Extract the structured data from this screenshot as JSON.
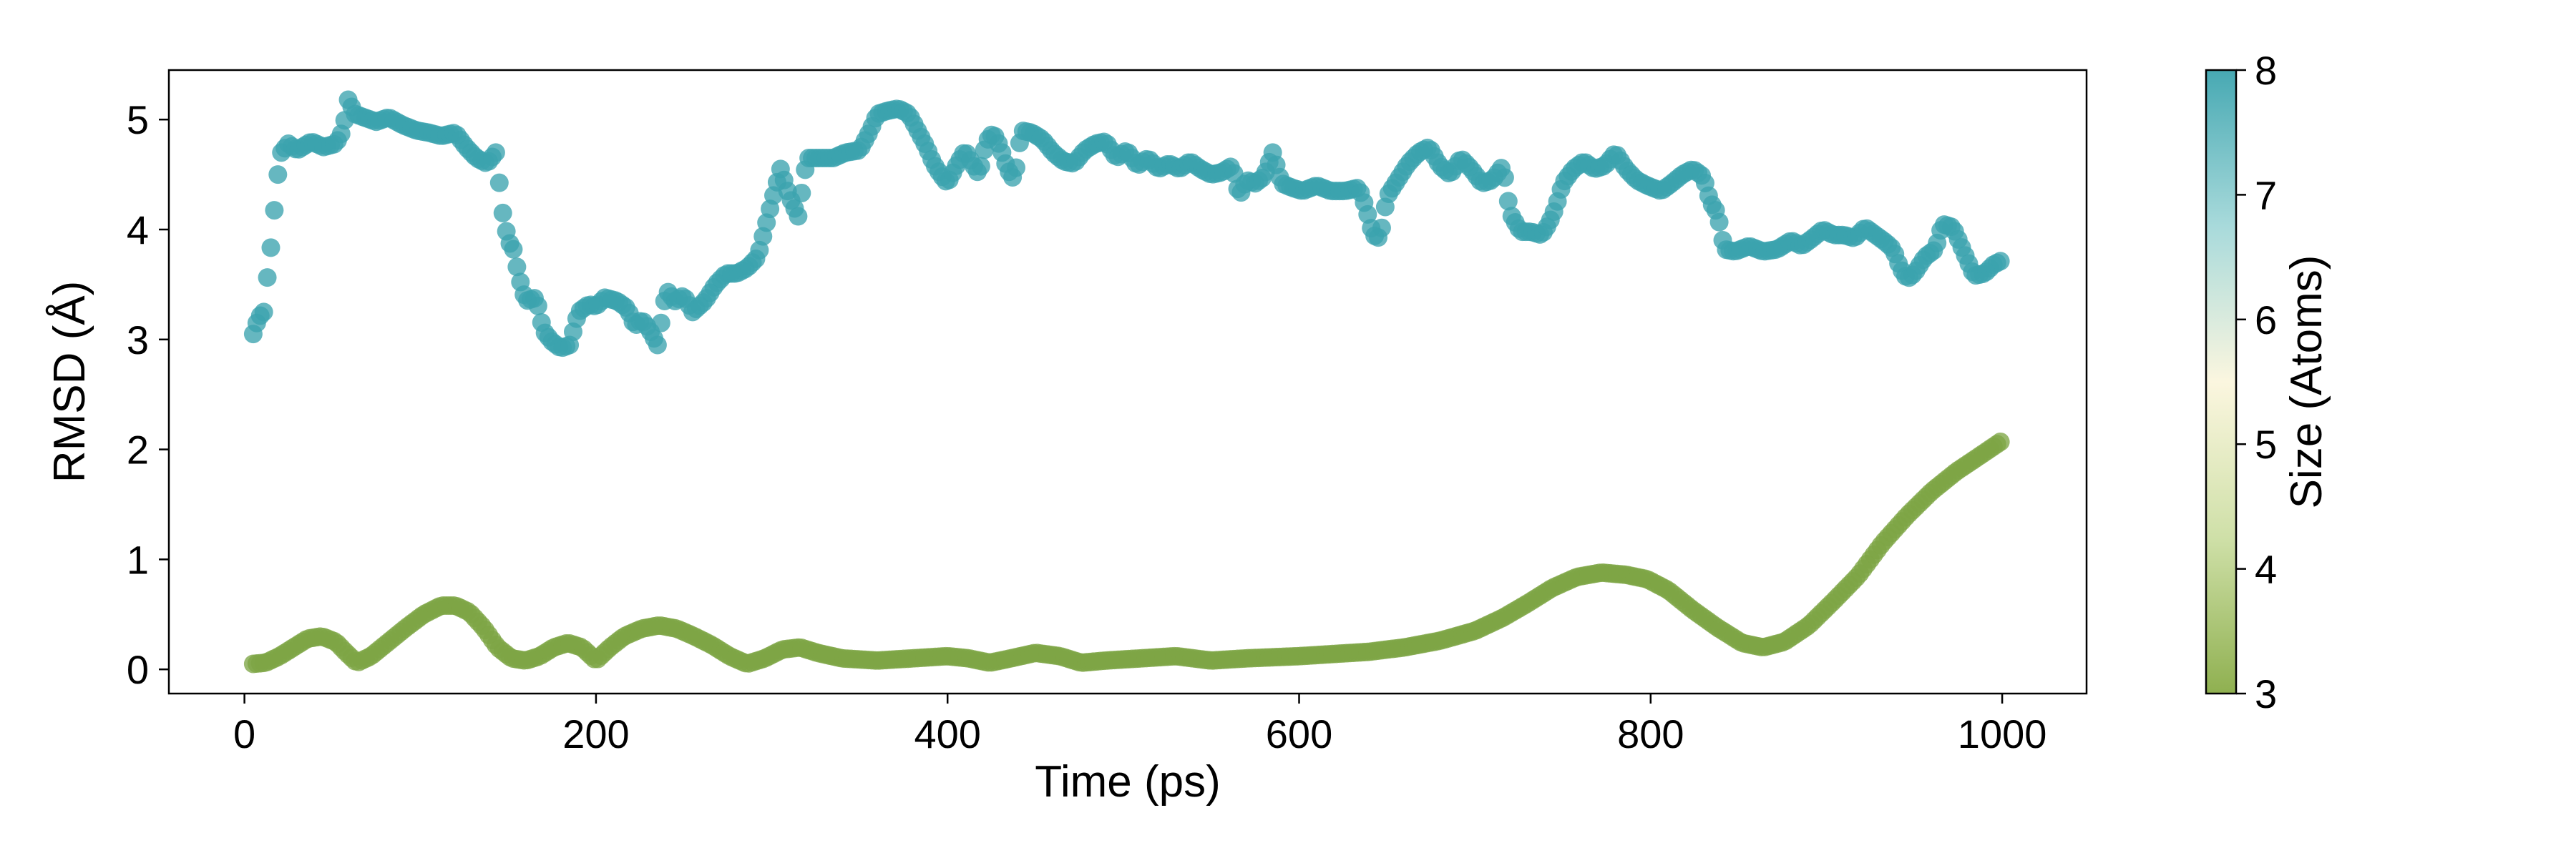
{
  "chart_data": {
    "type": "scatter",
    "xlabel": "Time (ps)",
    "ylabel": "RMSD (Å)",
    "xlim": [
      -43,
      1048
    ],
    "ylim": [
      -0.22,
      5.45
    ],
    "x_ticks": [
      0,
      200,
      400,
      600,
      800,
      1000
    ],
    "y_ticks": [
      0,
      1,
      2,
      3,
      4,
      5
    ],
    "grid": false,
    "legend": "none",
    "colorbar": {
      "label": "Size (Atoms)",
      "range": [
        3,
        8
      ],
      "ticks": [
        3,
        4,
        5,
        6,
        7,
        8
      ],
      "colors": [
        "#8fb050",
        "#cfe0a8",
        "#fbf6df",
        "#a8dadb",
        "#47a9b3"
      ]
    },
    "series": [
      {
        "size_atoms": 8,
        "color": "#3ba3ae",
        "x_step": 2,
        "anchors": [
          [
            5,
            3.05
          ],
          [
            8,
            3.2
          ],
          [
            11,
            3.25
          ],
          [
            14,
            3.72
          ],
          [
            16,
            3.95
          ],
          [
            18,
            4.4
          ],
          [
            21,
            4.7
          ],
          [
            25,
            4.78
          ],
          [
            30,
            4.72
          ],
          [
            38,
            4.8
          ],
          [
            45,
            4.75
          ],
          [
            52,
            4.78
          ],
          [
            56,
            4.9
          ],
          [
            59,
            5.18
          ],
          [
            63,
            5.05
          ],
          [
            68,
            5.02
          ],
          [
            75,
            4.98
          ],
          [
            82,
            5.02
          ],
          [
            90,
            4.95
          ],
          [
            98,
            4.9
          ],
          [
            105,
            4.88
          ],
          [
            112,
            4.85
          ],
          [
            120,
            4.88
          ],
          [
            126,
            4.75
          ],
          [
            132,
            4.65
          ],
          [
            138,
            4.6
          ],
          [
            143,
            4.7
          ],
          [
            147,
            4.15
          ],
          [
            150,
            3.9
          ],
          [
            153,
            3.82
          ],
          [
            156,
            3.58
          ],
          [
            160,
            3.35
          ],
          [
            166,
            3.38
          ],
          [
            170,
            3.08
          ],
          [
            175,
            2.98
          ],
          [
            180,
            2.92
          ],
          [
            185,
            2.95
          ],
          [
            190,
            3.25
          ],
          [
            196,
            3.32
          ],
          [
            200,
            3.3
          ],
          [
            205,
            3.38
          ],
          [
            212,
            3.35
          ],
          [
            218,
            3.28
          ],
          [
            222,
            3.12
          ],
          [
            226,
            3.18
          ],
          [
            230,
            3.1
          ],
          [
            235,
            2.95
          ],
          [
            240,
            3.45
          ],
          [
            245,
            3.35
          ],
          [
            250,
            3.4
          ],
          [
            255,
            3.25
          ],
          [
            262,
            3.35
          ],
          [
            268,
            3.5
          ],
          [
            274,
            3.6
          ],
          [
            280,
            3.6
          ],
          [
            286,
            3.65
          ],
          [
            292,
            3.75
          ],
          [
            296,
            4.0
          ],
          [
            300,
            4.25
          ],
          [
            305,
            4.55
          ],
          [
            310,
            4.3
          ],
          [
            315,
            4.12
          ],
          [
            320,
            4.65
          ],
          [
            328,
            4.65
          ],
          [
            335,
            4.65
          ],
          [
            342,
            4.7
          ],
          [
            350,
            4.72
          ],
          [
            356,
            4.9
          ],
          [
            360,
            5.05
          ],
          [
            366,
            5.08
          ],
          [
            372,
            5.1
          ],
          [
            378,
            5.05
          ],
          [
            383,
            4.9
          ],
          [
            388,
            4.75
          ],
          [
            392,
            4.6
          ],
          [
            396,
            4.5
          ],
          [
            400,
            4.42
          ],
          [
            405,
            4.58
          ],
          [
            410,
            4.72
          ],
          [
            414,
            4.6
          ],
          [
            418,
            4.5
          ],
          [
            422,
            4.8
          ],
          [
            426,
            4.88
          ],
          [
            430,
            4.75
          ],
          [
            434,
            4.55
          ],
          [
            438,
            4.45
          ],
          [
            442,
            4.9
          ],
          [
            448,
            4.88
          ],
          [
            454,
            4.82
          ],
          [
            460,
            4.7
          ],
          [
            466,
            4.62
          ],
          [
            472,
            4.6
          ],
          [
            478,
            4.72
          ],
          [
            484,
            4.78
          ],
          [
            490,
            4.8
          ],
          [
            496,
            4.65
          ],
          [
            502,
            4.72
          ],
          [
            508,
            4.58
          ],
          [
            514,
            4.65
          ],
          [
            520,
            4.55
          ],
          [
            526,
            4.6
          ],
          [
            532,
            4.55
          ],
          [
            538,
            4.62
          ],
          [
            544,
            4.55
          ],
          [
            550,
            4.5
          ],
          [
            556,
            4.52
          ],
          [
            562,
            4.58
          ],
          [
            566,
            4.3
          ],
          [
            570,
            4.45
          ],
          [
            575,
            4.42
          ],
          [
            580,
            4.48
          ],
          [
            585,
            4.7
          ],
          [
            590,
            4.42
          ],
          [
            596,
            4.38
          ],
          [
            602,
            4.35
          ],
          [
            610,
            4.4
          ],
          [
            618,
            4.35
          ],
          [
            626,
            4.35
          ],
          [
            634,
            4.38
          ],
          [
            638,
            4.2
          ],
          [
            642,
            3.95
          ],
          [
            646,
            3.92
          ],
          [
            650,
            4.3
          ],
          [
            656,
            4.45
          ],
          [
            662,
            4.6
          ],
          [
            668,
            4.7
          ],
          [
            674,
            4.75
          ],
          [
            680,
            4.58
          ],
          [
            686,
            4.5
          ],
          [
            692,
            4.65
          ],
          [
            698,
            4.55
          ],
          [
            704,
            4.42
          ],
          [
            710,
            4.45
          ],
          [
            716,
            4.58
          ],
          [
            720,
            4.15
          ],
          [
            726,
            3.98
          ],
          [
            732,
            3.98
          ],
          [
            738,
            3.95
          ],
          [
            742,
            4.05
          ],
          [
            746,
            4.2
          ],
          [
            750,
            4.42
          ],
          [
            756,
            4.55
          ],
          [
            762,
            4.62
          ],
          [
            768,
            4.55
          ],
          [
            774,
            4.58
          ],
          [
            780,
            4.7
          ],
          [
            786,
            4.55
          ],
          [
            792,
            4.45
          ],
          [
            798,
            4.4
          ],
          [
            806,
            4.35
          ],
          [
            812,
            4.42
          ],
          [
            818,
            4.5
          ],
          [
            824,
            4.55
          ],
          [
            830,
            4.48
          ],
          [
            834,
            4.25
          ],
          [
            838,
            4.15
          ],
          [
            842,
            3.82
          ],
          [
            848,
            3.8
          ],
          [
            856,
            3.85
          ],
          [
            864,
            3.8
          ],
          [
            872,
            3.82
          ],
          [
            880,
            3.9
          ],
          [
            886,
            3.85
          ],
          [
            892,
            3.92
          ],
          [
            898,
            4.0
          ],
          [
            904,
            3.95
          ],
          [
            910,
            3.95
          ],
          [
            916,
            3.92
          ],
          [
            922,
            4.02
          ],
          [
            928,
            3.95
          ],
          [
            934,
            3.88
          ],
          [
            938,
            3.82
          ],
          [
            942,
            3.65
          ],
          [
            946,
            3.55
          ],
          [
            950,
            3.6
          ],
          [
            956,
            3.75
          ],
          [
            962,
            3.82
          ],
          [
            966,
            4.05
          ],
          [
            972,
            4.02
          ],
          [
            978,
            3.8
          ],
          [
            984,
            3.58
          ],
          [
            990,
            3.6
          ],
          [
            995,
            3.68
          ],
          [
            1000,
            3.72
          ]
        ]
      },
      {
        "size_atoms": 3,
        "color": "#7da545",
        "x_step": 2,
        "anchors": [
          [
            5,
            0.05
          ],
          [
            12,
            0.06
          ],
          [
            20,
            0.12
          ],
          [
            28,
            0.2
          ],
          [
            36,
            0.28
          ],
          [
            44,
            0.3
          ],
          [
            52,
            0.25
          ],
          [
            58,
            0.15
          ],
          [
            64,
            0.06
          ],
          [
            72,
            0.12
          ],
          [
            82,
            0.25
          ],
          [
            92,
            0.38
          ],
          [
            102,
            0.5
          ],
          [
            112,
            0.58
          ],
          [
            120,
            0.58
          ],
          [
            128,
            0.52
          ],
          [
            136,
            0.38
          ],
          [
            144,
            0.2
          ],
          [
            152,
            0.1
          ],
          [
            160,
            0.08
          ],
          [
            168,
            0.12
          ],
          [
            176,
            0.2
          ],
          [
            184,
            0.24
          ],
          [
            192,
            0.2
          ],
          [
            200,
            0.08
          ],
          [
            208,
            0.2
          ],
          [
            216,
            0.3
          ],
          [
            226,
            0.37
          ],
          [
            236,
            0.4
          ],
          [
            246,
            0.37
          ],
          [
            256,
            0.3
          ],
          [
            266,
            0.22
          ],
          [
            276,
            0.12
          ],
          [
            286,
            0.05
          ],
          [
            296,
            0.1
          ],
          [
            306,
            0.18
          ],
          [
            316,
            0.2
          ],
          [
            326,
            0.15
          ],
          [
            340,
            0.1
          ],
          [
            360,
            0.08
          ],
          [
            380,
            0.1
          ],
          [
            400,
            0.12
          ],
          [
            412,
            0.1
          ],
          [
            424,
            0.06
          ],
          [
            436,
            0.1
          ],
          [
            450,
            0.15
          ],
          [
            464,
            0.12
          ],
          [
            476,
            0.06
          ],
          [
            490,
            0.08
          ],
          [
            510,
            0.1
          ],
          [
            530,
            0.12
          ],
          [
            550,
            0.08
          ],
          [
            570,
            0.1
          ],
          [
            600,
            0.12
          ],
          [
            620,
            0.14
          ],
          [
            640,
            0.16
          ],
          [
            660,
            0.2
          ],
          [
            680,
            0.26
          ],
          [
            700,
            0.35
          ],
          [
            716,
            0.47
          ],
          [
            730,
            0.6
          ],
          [
            744,
            0.74
          ],
          [
            758,
            0.84
          ],
          [
            772,
            0.88
          ],
          [
            786,
            0.86
          ],
          [
            798,
            0.82
          ],
          [
            810,
            0.72
          ],
          [
            824,
            0.54
          ],
          [
            838,
            0.38
          ],
          [
            852,
            0.24
          ],
          [
            864,
            0.2
          ],
          [
            876,
            0.25
          ],
          [
            890,
            0.4
          ],
          [
            904,
            0.62
          ],
          [
            918,
            0.85
          ],
          [
            932,
            1.15
          ],
          [
            946,
            1.4
          ],
          [
            960,
            1.62
          ],
          [
            974,
            1.8
          ],
          [
            988,
            1.95
          ],
          [
            1000,
            2.08
          ]
        ]
      }
    ]
  }
}
